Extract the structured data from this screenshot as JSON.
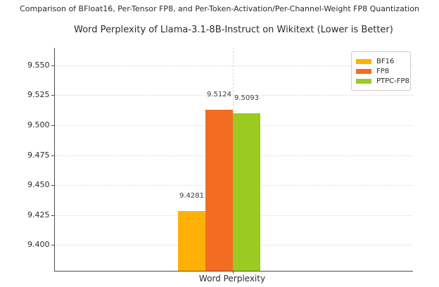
{
  "chart_data": {
    "type": "bar",
    "suptitle": "Comparison of BFloat16, Per-Tensor FP8, and Per-Token-Activation/Per-Channel-Weight FP8 Quantization",
    "title": "Word Perplexity of Llama-3.1-8B-Instruct on Wikitext (Lower is Better)",
    "categories": [
      "Word Perplexity"
    ],
    "series": [
      {
        "name": "BF16",
        "value": 9.4281,
        "value_label": "9.4281",
        "color": "#FFB005"
      },
      {
        "name": "FP8",
        "value": 9.5124,
        "value_label": "9.5124",
        "color": "#F26C21"
      },
      {
        "name": "PTPC-FP8",
        "value": 9.5093,
        "value_label": "9.5093",
        "color": "#9BCB20"
      }
    ],
    "xlabel": "Word Perplexity",
    "ylabel": "",
    "ylim": [
      9.378,
      9.5645
    ],
    "ytick_values": [
      9.4,
      9.425,
      9.45,
      9.475,
      9.5,
      9.525,
      9.55
    ],
    "ytick_labels": [
      "9.400",
      "9.425",
      "9.450",
      "9.475",
      "9.500",
      "9.525",
      "9.550"
    ],
    "grid": true,
    "legend_position": "upper right",
    "legend_entries": [
      "BF16",
      "FP8",
      "PTPC-FP8"
    ]
  },
  "style": {
    "background": "#ffffff",
    "grid_color": "#dcdcdc",
    "spine_color": "#4d4d4d",
    "title_color": "#2b2b2b",
    "value_label_color": "#3c3c3c",
    "legend_border_color": "#cccccc"
  }
}
